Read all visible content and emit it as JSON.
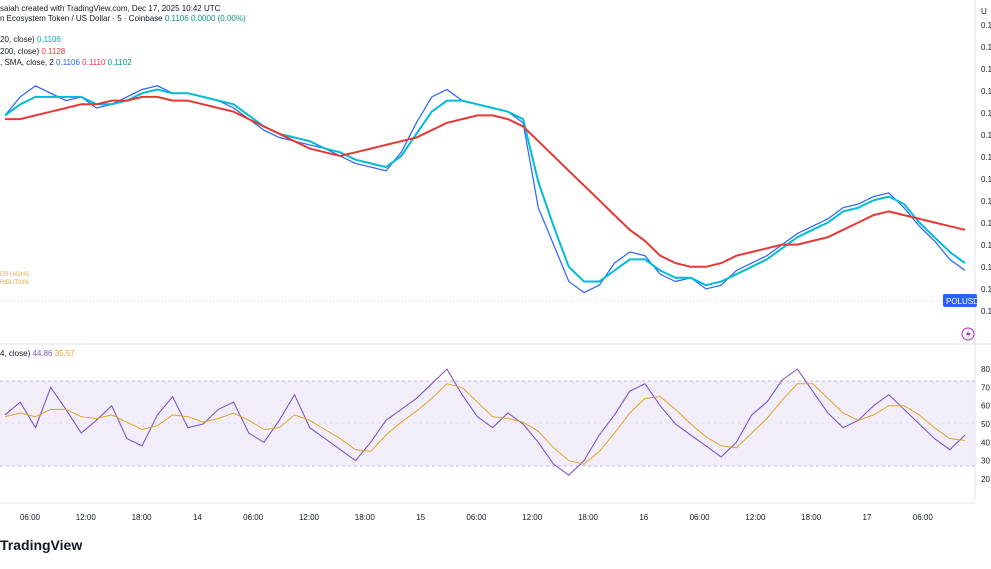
{
  "attribution": "saiah created with TradingView.com, Dec 17, 2025 10:42 UTC",
  "chart_data": [
    {
      "type": "line",
      "title": "n Ecosystem Token / US Dollar · 5 · Coinbase",
      "quote": {
        "last": "0.1106",
        "change": "0.0000",
        "change_pct": "(0.00%)"
      },
      "indicators": [
        {
          "label": "20, close)",
          "value": "0.1106",
          "color": "#00bcd4"
        },
        {
          "label": "200, close)",
          "value": "0.1128",
          "color": "#e53935"
        },
        {
          "label": ", SMA, close, 2",
          "values": [
            "0.1106",
            "0.1110",
            "0.1102"
          ],
          "color": "#f44336"
        }
      ],
      "price_tag": "POLUSD",
      "price_tag_color": "#2962ff",
      "faded_labels": [
        "BULLISH",
        "ER HIGHS",
        "RIBUTION"
      ],
      "y_ticks": [
        "0.1",
        "0.1",
        "0.1",
        "0.1",
        "0.1",
        "0.1",
        "0.1",
        "0.1",
        "0.1",
        "0.1",
        "0.1",
        "0.1",
        "0.1",
        "0.1"
      ],
      "axis_marker_right": "U",
      "series": [
        {
          "name": "Price",
          "color": "#2962ff",
          "values": [
            0.5,
            0.55,
            0.58,
            0.56,
            0.54,
            0.55,
            0.52,
            0.53,
            0.55,
            0.57,
            0.58,
            0.56,
            0.56,
            0.55,
            0.54,
            0.52,
            0.49,
            0.46,
            0.44,
            0.43,
            0.42,
            0.41,
            0.39,
            0.37,
            0.36,
            0.35,
            0.4,
            0.48,
            0.55,
            0.57,
            0.54,
            0.53,
            0.52,
            0.51,
            0.48,
            0.25,
            0.15,
            0.05,
            0.02,
            0.04,
            0.1,
            0.13,
            0.12,
            0.07,
            0.05,
            0.06,
            0.03,
            0.04,
            0.08,
            0.1,
            0.12,
            0.15,
            0.18,
            0.2,
            0.22,
            0.25,
            0.26,
            0.28,
            0.29,
            0.25,
            0.2,
            0.16,
            0.11,
            0.08
          ]
        },
        {
          "name": "EMA 20",
          "color": "#00bcd4",
          "values": [
            0.5,
            0.53,
            0.55,
            0.55,
            0.55,
            0.55,
            0.53,
            0.53,
            0.54,
            0.56,
            0.57,
            0.56,
            0.56,
            0.55,
            0.54,
            0.53,
            0.5,
            0.47,
            0.45,
            0.44,
            0.43,
            0.41,
            0.4,
            0.38,
            0.37,
            0.36,
            0.39,
            0.45,
            0.51,
            0.54,
            0.54,
            0.53,
            0.52,
            0.51,
            0.49,
            0.32,
            0.2,
            0.09,
            0.05,
            0.05,
            0.08,
            0.11,
            0.11,
            0.08,
            0.06,
            0.06,
            0.04,
            0.05,
            0.07,
            0.09,
            0.11,
            0.14,
            0.17,
            0.19,
            0.21,
            0.24,
            0.25,
            0.27,
            0.28,
            0.26,
            0.21,
            0.17,
            0.13,
            0.1
          ]
        },
        {
          "name": "MA 200",
          "color": "#e53935",
          "values": [
            0.49,
            0.49,
            0.5,
            0.51,
            0.52,
            0.53,
            0.53,
            0.54,
            0.54,
            0.55,
            0.55,
            0.54,
            0.54,
            0.53,
            0.52,
            0.51,
            0.49,
            0.47,
            0.45,
            0.43,
            0.41,
            0.4,
            0.39,
            0.4,
            0.41,
            0.42,
            0.43,
            0.44,
            0.46,
            0.48,
            0.49,
            0.5,
            0.5,
            0.49,
            0.47,
            0.43,
            0.39,
            0.35,
            0.31,
            0.27,
            0.23,
            0.19,
            0.16,
            0.12,
            0.1,
            0.09,
            0.09,
            0.1,
            0.12,
            0.13,
            0.14,
            0.15,
            0.15,
            0.16,
            0.17,
            0.19,
            0.21,
            0.23,
            0.24,
            0.23,
            0.22,
            0.21,
            0.2,
            0.19
          ]
        }
      ],
      "ylim": [
        0,
        0.65
      ]
    },
    {
      "type": "line",
      "title": "4, close)",
      "values_shown": [
        "44.86",
        "35.57"
      ],
      "y_ticks": [
        80,
        70,
        60,
        50,
        40,
        30,
        20
      ],
      "ylim": [
        15,
        85
      ],
      "band": [
        30,
        70
      ],
      "series": [
        {
          "name": "RSI",
          "color": "#7e57c2",
          "values": [
            55,
            62,
            48,
            70,
            58,
            45,
            52,
            60,
            42,
            38,
            55,
            65,
            48,
            50,
            58,
            62,
            45,
            40,
            52,
            66,
            48,
            42,
            36,
            30,
            40,
            52,
            58,
            64,
            72,
            80,
            66,
            54,
            48,
            56,
            50,
            40,
            28,
            22,
            30,
            44,
            55,
            68,
            72,
            60,
            50,
            44,
            38,
            32,
            40,
            55,
            62,
            74,
            80,
            68,
            56,
            48,
            52,
            60,
            66,
            58,
            50,
            42,
            36,
            44
          ]
        },
        {
          "name": "RSI MA",
          "color": "#e0a526",
          "values": [
            54,
            56,
            54,
            58,
            58,
            54,
            53,
            55,
            51,
            47,
            49,
            55,
            54,
            51,
            53,
            56,
            52,
            47,
            48,
            55,
            52,
            47,
            42,
            36,
            35,
            44,
            51,
            57,
            64,
            72,
            70,
            62,
            54,
            53,
            51,
            46,
            37,
            30,
            28,
            35,
            45,
            56,
            64,
            65,
            58,
            50,
            43,
            38,
            37,
            45,
            53,
            63,
            72,
            72,
            64,
            56,
            52,
            55,
            60,
            60,
            55,
            48,
            42,
            41
          ]
        }
      ]
    }
  ],
  "x_ticks": [
    "06:00",
    "12:00",
    "18:00",
    "14",
    "06:00",
    "12:00",
    "18:00",
    "15",
    "06:00",
    "12:00",
    "18:00",
    "16",
    "06:00",
    "12:00",
    "18:00",
    "17",
    "06:00"
  ],
  "footer_logo": "TradingView"
}
